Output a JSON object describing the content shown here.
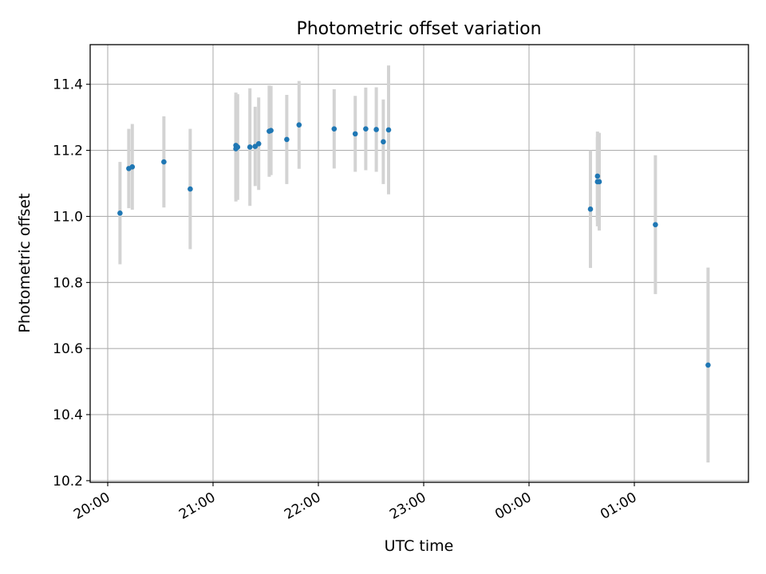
{
  "chart_data": {
    "type": "scatter",
    "title": "Photometric offset variation",
    "xlabel": "UTC time",
    "ylabel": "Photometric offset",
    "x_unit": "minutes",
    "x_ticks": [
      "20:00",
      "21:00",
      "22:00",
      "23:00",
      "00:00",
      "01:00"
    ],
    "y_ticks": [
      "10.2",
      "10.4",
      "10.6",
      "10.8",
      "11.0",
      "11.2",
      "11.4"
    ],
    "xlim": [
      "19:50",
      "02:05"
    ],
    "ylim": [
      10.195,
      11.52
    ],
    "grid": true,
    "colors": {
      "point": "#1f77b4",
      "errorbar": "#d3d3d3",
      "grid": "#b0b0b0"
    },
    "points": [
      {
        "time": "20:07",
        "y": 11.01,
        "yerr": 0.155
      },
      {
        "time": "20:12",
        "y": 11.145,
        "yerr": 0.12
      },
      {
        "time": "20:14",
        "y": 11.15,
        "yerr": 0.13
      },
      {
        "time": "20:32",
        "y": 11.165,
        "yerr": 0.138
      },
      {
        "time": "20:47",
        "y": 11.083,
        "yerr": 0.182
      },
      {
        "time": "21:13",
        "y": 11.215,
        "yerr": 0.16
      },
      {
        "time": "21:13",
        "y": 11.205,
        "yerr": 0.16
      },
      {
        "time": "21:14",
        "y": 11.21,
        "yerr": 0.16
      },
      {
        "time": "21:21",
        "y": 11.21,
        "yerr": 0.178
      },
      {
        "time": "21:24",
        "y": 11.212,
        "yerr": 0.12
      },
      {
        "time": "21:26",
        "y": 11.22,
        "yerr": 0.14
      },
      {
        "time": "21:32",
        "y": 11.258,
        "yerr": 0.138
      },
      {
        "time": "21:33",
        "y": 11.26,
        "yerr": 0.135
      },
      {
        "time": "21:42",
        "y": 11.233,
        "yerr": 0.135
      },
      {
        "time": "21:49",
        "y": 11.277,
        "yerr": 0.133
      },
      {
        "time": "22:09",
        "y": 11.265,
        "yerr": 0.12
      },
      {
        "time": "22:21",
        "y": 11.25,
        "yerr": 0.115
      },
      {
        "time": "22:27",
        "y": 11.265,
        "yerr": 0.125
      },
      {
        "time": "22:33",
        "y": 11.263,
        "yerr": 0.128
      },
      {
        "time": "22:37",
        "y": 11.226,
        "yerr": 0.128
      },
      {
        "time": "22:40",
        "y": 11.262,
        "yerr": 0.195
      },
      {
        "time": "00:35",
        "y": 11.022,
        "yerr": 0.178
      },
      {
        "time": "00:39",
        "y": 11.122,
        "yerr": 0.135
      },
      {
        "time": "00:39",
        "y": 11.105,
        "yerr": 0.135
      },
      {
        "time": "00:40",
        "y": 11.105,
        "yerr": 0.148
      },
      {
        "time": "01:12",
        "y": 10.975,
        "yerr": 0.21
      },
      {
        "time": "01:42",
        "y": 10.55,
        "yerr": 0.295
      }
    ]
  }
}
